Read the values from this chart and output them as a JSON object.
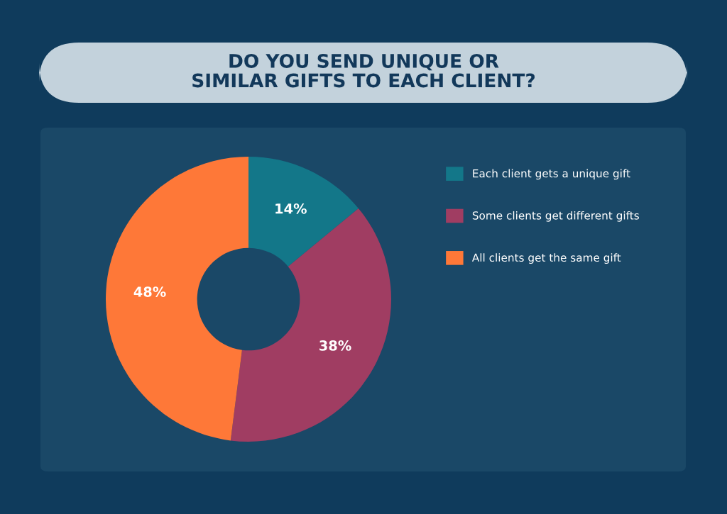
{
  "chart_data": {
    "type": "donut",
    "title": "DO YOU SEND UNIQUE OR SIMILAR GIFTS TO EACH CLIENT?",
    "categories": [
      "Each client gets a unique gift",
      "Some clients get different gifts",
      "All clients get the same gift"
    ],
    "values": [
      14,
      38,
      48
    ],
    "colors": [
      "#137789",
      "#a03d62",
      "#fe7838"
    ],
    "value_labels": [
      "14%",
      "38%",
      "48%"
    ],
    "legend": "right"
  }
}
